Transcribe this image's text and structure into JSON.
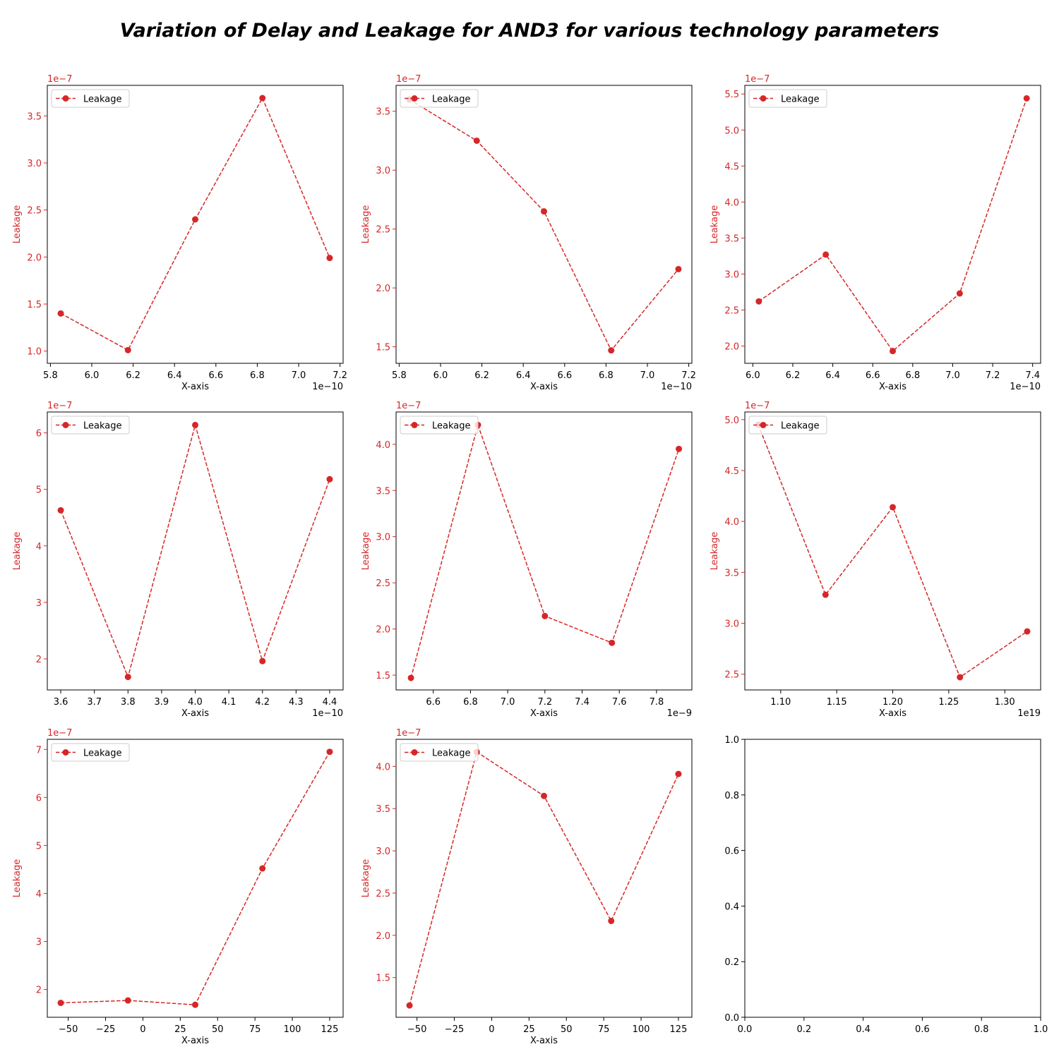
{
  "title": "Variation of Delay and Leakage for AND3 for various technology parameters",
  "colors": {
    "series": "#d62728",
    "axis": "#000000",
    "legend_border": "#cccccc"
  },
  "chart_data": [
    {
      "type": "line",
      "xlabel": "X-axis",
      "ylabel": "Leakage",
      "x_multiplier": "1e−10",
      "y_multiplier": "1e−7",
      "xlim": [
        5.785,
        7.215
      ],
      "ylim": [
        0.87,
        3.825
      ],
      "xticks": [
        5.8,
        6.0,
        6.2,
        6.4,
        6.6,
        6.8,
        7.0,
        7.2
      ],
      "xtick_labels": [
        "5.8",
        "6.0",
        "6.2",
        "6.4",
        "6.6",
        "6.8",
        "7.0",
        "7.2"
      ],
      "yticks": [
        1.0,
        1.5,
        2.0,
        2.5,
        3.0,
        3.5
      ],
      "ytick_labels": [
        "1.0",
        "1.5",
        "2.0",
        "2.5",
        "3.0",
        "3.5"
      ],
      "legend": "top-left",
      "series": [
        {
          "name": "Leakage",
          "x": [
            5.85,
            6.175,
            6.5,
            6.825,
            7.15
          ],
          "y": [
            1.4,
            1.01,
            2.4,
            3.69,
            1.99
          ]
        }
      ]
    },
    {
      "type": "line",
      "xlabel": "X-axis",
      "ylabel": "Leakage",
      "x_multiplier": "1e−10",
      "y_multiplier": "1e−7",
      "xlim": [
        5.785,
        7.215
      ],
      "ylim": [
        1.36,
        3.72
      ],
      "xticks": [
        5.8,
        6.0,
        6.2,
        6.4,
        6.6,
        6.8,
        7.0,
        7.2
      ],
      "xtick_labels": [
        "5.8",
        "6.0",
        "6.2",
        "6.4",
        "6.6",
        "6.8",
        "7.0",
        "7.2"
      ],
      "yticks": [
        1.5,
        2.0,
        2.5,
        3.0,
        3.5
      ],
      "ytick_labels": [
        "1.5",
        "2.0",
        "2.5",
        "3.0",
        "3.5"
      ],
      "legend": "top-left",
      "series": [
        {
          "name": "Leakage",
          "x": [
            5.85,
            6.175,
            6.5,
            6.825,
            7.15
          ],
          "y": [
            3.6,
            3.25,
            2.65,
            1.47,
            2.16
          ]
        }
      ]
    },
    {
      "type": "line",
      "xlabel": "X-axis",
      "ylabel": "Leakage",
      "x_multiplier": "1e−10",
      "y_multiplier": "1e−7",
      "xlim": [
        5.96,
        7.44
      ],
      "ylim": [
        1.76,
        5.62
      ],
      "xticks": [
        6.0,
        6.2,
        6.4,
        6.6,
        6.8,
        7.0,
        7.2,
        7.4
      ],
      "xtick_labels": [
        "6.0",
        "6.2",
        "6.4",
        "6.6",
        "6.8",
        "7.0",
        "7.2",
        "7.4"
      ],
      "yticks": [
        2.0,
        2.5,
        3.0,
        3.5,
        4.0,
        4.5,
        5.0,
        5.5
      ],
      "ytick_labels": [
        "2.0",
        "2.5",
        "3.0",
        "3.5",
        "4.0",
        "4.5",
        "5.0",
        "5.5"
      ],
      "legend": "top-left",
      "series": [
        {
          "name": "Leakage",
          "x": [
            6.03,
            6.365,
            6.7,
            7.035,
            7.37
          ],
          "y": [
            2.62,
            3.27,
            1.93,
            2.73,
            5.44
          ]
        }
      ]
    },
    {
      "type": "line",
      "xlabel": "X-axis",
      "ylabel": "Leakage",
      "x_multiplier": "1e−10",
      "y_multiplier": "1e−7",
      "xlim": [
        3.56,
        4.44
      ],
      "ylim": [
        1.45,
        6.37
      ],
      "xticks": [
        3.6,
        3.7,
        3.8,
        3.9,
        4.0,
        4.1,
        4.2,
        4.3,
        4.4
      ],
      "xtick_labels": [
        "3.6",
        "3.7",
        "3.8",
        "3.9",
        "4.0",
        "4.1",
        "4.2",
        "4.3",
        "4.4"
      ],
      "yticks": [
        2,
        3,
        4,
        5,
        6
      ],
      "ytick_labels": [
        "2",
        "3",
        "4",
        "5",
        "6"
      ],
      "legend": "top-left",
      "series": [
        {
          "name": "Leakage",
          "x": [
            3.6,
            3.8,
            4.0,
            4.2,
            4.4
          ],
          "y": [
            4.63,
            1.68,
            6.14,
            1.96,
            5.18
          ]
        }
      ]
    },
    {
      "type": "line",
      "xlabel": "X-axis",
      "ylabel": "Leakage",
      "x_multiplier": "1e−9",
      "y_multiplier": "1e−7",
      "xlim": [
        6.4,
        7.99
      ],
      "ylim": [
        1.34,
        4.35
      ],
      "xticks": [
        6.6,
        6.8,
        7.0,
        7.2,
        7.4,
        7.6,
        7.8
      ],
      "xtick_labels": [
        "6.6",
        "6.8",
        "7.0",
        "7.2",
        "7.4",
        "7.6",
        "7.8"
      ],
      "yticks": [
        1.5,
        2.0,
        2.5,
        3.0,
        3.5,
        4.0
      ],
      "ytick_labels": [
        "1.5",
        "2.0",
        "2.5",
        "3.0",
        "3.5",
        "4.0"
      ],
      "legend": "top-left",
      "series": [
        {
          "name": "Leakage",
          "x": [
            6.48,
            6.84,
            7.2,
            7.56,
            7.92
          ],
          "y": [
            1.47,
            4.21,
            2.14,
            1.85,
            3.95
          ]
        }
      ]
    },
    {
      "type": "line",
      "xlabel": "X-axis",
      "ylabel": "Leakage",
      "x_multiplier": "1e19",
      "y_multiplier": "1e−7",
      "xlim": [
        1.068,
        1.332
      ],
      "ylim": [
        2.345,
        5.075
      ],
      "xticks": [
        1.1,
        1.15,
        1.2,
        1.25,
        1.3
      ],
      "xtick_labels": [
        "1.10",
        "1.15",
        "1.20",
        "1.25",
        "1.30"
      ],
      "yticks": [
        2.5,
        3.0,
        3.5,
        4.0,
        4.5,
        5.0
      ],
      "ytick_labels": [
        "2.5",
        "3.0",
        "3.5",
        "4.0",
        "4.5",
        "5.0"
      ],
      "legend": "top-left",
      "series": [
        {
          "name": "Leakage",
          "x": [
            1.08,
            1.14,
            1.2,
            1.26,
            1.32
          ],
          "y": [
            4.95,
            3.28,
            4.14,
            2.47,
            2.92
          ]
        }
      ]
    },
    {
      "type": "line",
      "xlabel": "X-axis",
      "ylabel": "Leakage",
      "x_multiplier": "",
      "y_multiplier": "1e−7",
      "xlim": [
        -64,
        134
      ],
      "ylim": [
        1.42,
        7.21
      ],
      "xticks": [
        -50,
        -25,
        0,
        25,
        50,
        75,
        100,
        125
      ],
      "xtick_labels": [
        "−50",
        "−25",
        "0",
        "25",
        "50",
        "75",
        "100",
        "125"
      ],
      "yticks": [
        2,
        3,
        4,
        5,
        6,
        7
      ],
      "ytick_labels": [
        "2",
        "3",
        "4",
        "5",
        "6",
        "7"
      ],
      "legend": "top-left",
      "series": [
        {
          "name": "Leakage",
          "x": [
            -55,
            -10,
            35,
            80,
            125
          ],
          "y": [
            1.72,
            1.77,
            1.68,
            4.52,
            6.95
          ]
        }
      ]
    },
    {
      "type": "line",
      "xlabel": "X-axis",
      "ylabel": "Leakage",
      "x_multiplier": "",
      "y_multiplier": "1e−7",
      "xlim": [
        -64,
        134
      ],
      "ylim": [
        1.03,
        4.32
      ],
      "xticks": [
        -50,
        -25,
        0,
        25,
        50,
        75,
        100,
        125
      ],
      "xtick_labels": [
        "−50",
        "−25",
        "0",
        "25",
        "50",
        "75",
        "100",
        "125"
      ],
      "yticks": [
        1.5,
        2.0,
        2.5,
        3.0,
        3.5,
        4.0
      ],
      "ytick_labels": [
        "1.5",
        "2.0",
        "2.5",
        "3.0",
        "3.5",
        "4.0"
      ],
      "legend": "top-left",
      "series": [
        {
          "name": "Leakage",
          "x": [
            -55,
            -10,
            35,
            80,
            125
          ],
          "y": [
            1.17,
            4.17,
            3.65,
            2.17,
            3.91
          ]
        }
      ]
    },
    {
      "type": "line",
      "empty": true,
      "xlabel": "",
      "ylabel": "",
      "x_multiplier": "",
      "y_multiplier": "",
      "xlim": [
        0,
        1
      ],
      "ylim": [
        0,
        1
      ],
      "xticks": [
        0,
        0.2,
        0.4,
        0.6,
        0.8,
        1.0
      ],
      "xtick_labels": [
        "0.0",
        "0.2",
        "0.4",
        "0.6",
        "0.8",
        "1.0"
      ],
      "yticks": [
        0,
        0.2,
        0.4,
        0.6,
        0.8,
        1.0
      ],
      "ytick_labels": [
        "0.0",
        "0.2",
        "0.4",
        "0.6",
        "0.8",
        "1.0"
      ],
      "series": []
    }
  ]
}
